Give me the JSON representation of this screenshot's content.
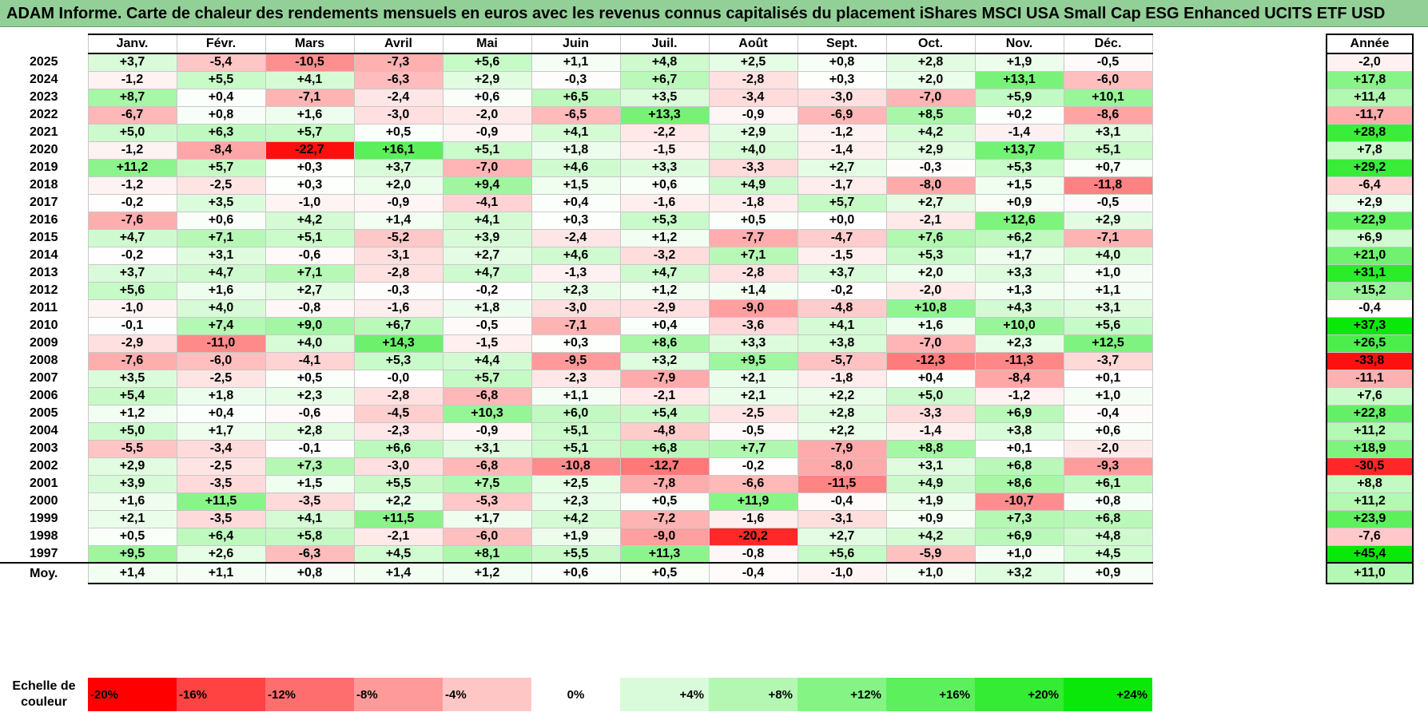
{
  "title": "ADAM Informe. Carte de chaleur des rendements mensuels en euros avec les revenus connus capitalisés du placement iShares MSCI USA Small Cap ESG Enhanced UCITS ETF USD",
  "chart_data": {
    "type": "heatmap",
    "title": "ADAM Informe. Carte de chaleur des rendements mensuels en euros avec les revenus connus capitalisés du placement iShares MSCI USA Small Cap ESG Enhanced UCITS ETF USD",
    "columns": [
      "Janv.",
      "Févr.",
      "Mars",
      "Avril",
      "Mai",
      "Juin",
      "Juil.",
      "Août",
      "Sept.",
      "Oct.",
      "Nov.",
      "Déc."
    ],
    "year_column_label": "Année",
    "rows": [
      {
        "year": "2025",
        "values": [
          "+3,7",
          "-5,4",
          "-10,5",
          "-7,3",
          "+5,6",
          "+1,1",
          "+4,8",
          "+2,5",
          "+0,8",
          "+2,8",
          "+1,9",
          "-0,5"
        ],
        "annual": "-2,0"
      },
      {
        "year": "2024",
        "values": [
          "-1,2",
          "+5,5",
          "+4,1",
          "-6,3",
          "+2,9",
          "-0,3",
          "+6,7",
          "-2,8",
          "+0,3",
          "+2,0",
          "+13,1",
          "-6,0"
        ],
        "annual": "+17,8"
      },
      {
        "year": "2023",
        "values": [
          "+8,7",
          "+0,4",
          "-7,1",
          "-2,4",
          "+0,6",
          "+6,5",
          "+3,5",
          "-3,4",
          "-3,0",
          "-7,0",
          "+5,9",
          "+10,1"
        ],
        "annual": "+11,4"
      },
      {
        "year": "2022",
        "values": [
          "-6,7",
          "+0,8",
          "+1,6",
          "-3,0",
          "-2,0",
          "-6,5",
          "+13,3",
          "-0,9",
          "-6,9",
          "+8,5",
          "+0,2",
          "-8,6"
        ],
        "annual": "-11,7"
      },
      {
        "year": "2021",
        "values": [
          "+5,0",
          "+6,3",
          "+5,7",
          "+0,5",
          "-0,9",
          "+4,1",
          "-2,2",
          "+2,9",
          "-1,2",
          "+4,2",
          "-1,4",
          "+3,1"
        ],
        "annual": "+28,8"
      },
      {
        "year": "2020",
        "values": [
          "-1,2",
          "-8,4",
          "-22,7",
          "+16,1",
          "+5,1",
          "+1,8",
          "-1,5",
          "+4,0",
          "-1,4",
          "+2,9",
          "+13,7",
          "+5,1"
        ],
        "annual": "+7,8"
      },
      {
        "year": "2019",
        "values": [
          "+11,2",
          "+5,7",
          "+0,3",
          "+3,7",
          "-7,0",
          "+4,6",
          "+3,3",
          "-3,3",
          "+2,7",
          "-0,3",
          "+5,3",
          "+0,7"
        ],
        "annual": "+29,2"
      },
      {
        "year": "2018",
        "values": [
          "-1,2",
          "-2,5",
          "+0,3",
          "+2,0",
          "+9,4",
          "+1,5",
          "+0,6",
          "+4,9",
          "-1,7",
          "-8,0",
          "+1,5",
          "-11,8"
        ],
        "annual": "-6,4"
      },
      {
        "year": "2017",
        "values": [
          "-0,2",
          "+3,5",
          "-1,0",
          "-0,9",
          "-4,1",
          "+0,4",
          "-1,6",
          "-1,8",
          "+5,7",
          "+2,7",
          "+0,9",
          "-0,5"
        ],
        "annual": "+2,9"
      },
      {
        "year": "2016",
        "values": [
          "-7,6",
          "+0,6",
          "+4,2",
          "+1,4",
          "+4,1",
          "+0,3",
          "+5,3",
          "+0,5",
          "+0,0",
          "-2,1",
          "+12,6",
          "+2,9"
        ],
        "annual": "+22,9"
      },
      {
        "year": "2015",
        "values": [
          "+4,7",
          "+7,1",
          "+5,1",
          "-5,2",
          "+3,9",
          "-2,4",
          "+1,2",
          "-7,7",
          "-4,7",
          "+7,6",
          "+6,2",
          "-7,1"
        ],
        "annual": "+6,9"
      },
      {
        "year": "2014",
        "values": [
          "-0,2",
          "+3,1",
          "-0,6",
          "-3,1",
          "+2,7",
          "+4,6",
          "-3,2",
          "+7,1",
          "-1,5",
          "+5,3",
          "+1,7",
          "+4,0"
        ],
        "annual": "+21,0"
      },
      {
        "year": "2013",
        "values": [
          "+3,7",
          "+4,7",
          "+7,1",
          "-2,8",
          "+4,7",
          "-1,3",
          "+4,7",
          "-2,8",
          "+3,7",
          "+2,0",
          "+3,3",
          "+1,0"
        ],
        "annual": "+31,1"
      },
      {
        "year": "2012",
        "values": [
          "+5,6",
          "+1,6",
          "+2,7",
          "-0,3",
          "-0,2",
          "+2,3",
          "+1,2",
          "+1,4",
          "-0,2",
          "-2,0",
          "+1,3",
          "+1,1"
        ],
        "annual": "+15,2"
      },
      {
        "year": "2011",
        "values": [
          "-1,0",
          "+4,0",
          "-0,8",
          "-1,6",
          "+1,8",
          "-3,0",
          "-2,9",
          "-9,0",
          "-4,8",
          "+10,8",
          "+4,3",
          "+3,1"
        ],
        "annual": "-0,4"
      },
      {
        "year": "2010",
        "values": [
          "-0,1",
          "+7,4",
          "+9,0",
          "+6,7",
          "-0,5",
          "-7,1",
          "+0,4",
          "-3,6",
          "+4,1",
          "+1,6",
          "+10,0",
          "+5,6"
        ],
        "annual": "+37,3"
      },
      {
        "year": "2009",
        "values": [
          "-2,9",
          "-11,0",
          "+4,0",
          "+14,3",
          "-1,5",
          "+0,3",
          "+8,6",
          "+3,3",
          "+3,8",
          "-7,0",
          "+2,3",
          "+12,5"
        ],
        "annual": "+26,5"
      },
      {
        "year": "2008",
        "values": [
          "-7,6",
          "-6,0",
          "-4,1",
          "+5,3",
          "+4,4",
          "-9,5",
          "+3,2",
          "+9,5",
          "-5,7",
          "-12,3",
          "-11,3",
          "-3,7"
        ],
        "annual": "-33,8"
      },
      {
        "year": "2007",
        "values": [
          "+3,5",
          "-2,5",
          "+0,5",
          "-0,0",
          "+5,7",
          "-2,3",
          "-7,9",
          "+2,1",
          "-1,8",
          "+0,4",
          "-8,4",
          "+0,1"
        ],
        "annual": "-11,1"
      },
      {
        "year": "2006",
        "values": [
          "+5,4",
          "+1,8",
          "+2,3",
          "-2,8",
          "-6,8",
          "+1,1",
          "-2,1",
          "+2,1",
          "+2,2",
          "+5,0",
          "-1,2",
          "+1,0"
        ],
        "annual": "+7,6"
      },
      {
        "year": "2005",
        "values": [
          "+1,2",
          "+0,4",
          "-0,6",
          "-4,5",
          "+10,3",
          "+6,0",
          "+5,4",
          "-2,5",
          "+2,8",
          "-3,3",
          "+6,9",
          "-0,4"
        ],
        "annual": "+22,8"
      },
      {
        "year": "2004",
        "values": [
          "+5,0",
          "+1,7",
          "+2,8",
          "-2,3",
          "-0,9",
          "+5,1",
          "-4,8",
          "-0,5",
          "+2,2",
          "-1,4",
          "+3,8",
          "+0,6"
        ],
        "annual": "+11,2"
      },
      {
        "year": "2003",
        "values": [
          "-5,5",
          "-3,4",
          "-0,1",
          "+6,6",
          "+3,1",
          "+5,1",
          "+6,8",
          "+7,7",
          "-7,9",
          "+8,8",
          "+0,1",
          "-2,0"
        ],
        "annual": "+18,9"
      },
      {
        "year": "2002",
        "values": [
          "+2,9",
          "-2,5",
          "+7,3",
          "-3,0",
          "-6,8",
          "-10,8",
          "-12,7",
          "-0,2",
          "-8,0",
          "+3,1",
          "+6,8",
          "-9,3"
        ],
        "annual": "-30,5"
      },
      {
        "year": "2001",
        "values": [
          "+3,9",
          "-3,5",
          "+1,5",
          "+5,5",
          "+7,5",
          "+2,5",
          "-7,8",
          "-6,6",
          "-11,5",
          "+4,9",
          "+8,6",
          "+6,1"
        ],
        "annual": "+8,8"
      },
      {
        "year": "2000",
        "values": [
          "+1,6",
          "+11,5",
          "-3,5",
          "+2,2",
          "-5,3",
          "+2,3",
          "+0,5",
          "+11,9",
          "-0,4",
          "+1,9",
          "-10,7",
          "+0,8"
        ],
        "annual": "+11,2"
      },
      {
        "year": "1999",
        "values": [
          "+2,1",
          "-3,5",
          "+4,1",
          "+11,5",
          "+1,7",
          "+4,2",
          "-7,2",
          "-1,6",
          "-3,1",
          "+0,9",
          "+7,3",
          "+6,8"
        ],
        "annual": "+23,9"
      },
      {
        "year": "1998",
        "values": [
          "+0,5",
          "+6,4",
          "+5,8",
          "-2,1",
          "-6,0",
          "+1,9",
          "-9,0",
          "-20,2",
          "+2,7",
          "+4,2",
          "+6,9",
          "+4,8"
        ],
        "annual": "-7,6"
      },
      {
        "year": "1997",
        "values": [
          "+9,5",
          "+2,6",
          "-6,3",
          "+4,5",
          "+8,1",
          "+5,5",
          "+11,3",
          "-0,8",
          "+5,6",
          "-5,9",
          "+1,0",
          "+4,5"
        ],
        "annual": "+45,4"
      }
    ],
    "average": {
      "label": "Moy.",
      "values": [
        "+1,4",
        "+1,1",
        "+0,8",
        "+1,4",
        "+1,2",
        "+0,6",
        "+0,5",
        "-0,4",
        "-1,0",
        "+1,0",
        "+3,2",
        "+0,9"
      ],
      "annual": "+11,0"
    },
    "scale": {
      "label": "Echelle de couleur",
      "ticks": [
        "-20%",
        "-16%",
        "-12%",
        "-8%",
        "-4%",
        "0%",
        "+4%",
        "+8%",
        "+12%",
        "+16%",
        "+20%",
        "+24%"
      ],
      "colors": [
        "#ff0000",
        "#ff4242",
        "#ff6e6e",
        "#ff9a9a",
        "#ffc6c6",
        "#ffffff",
        "#d9fbd9",
        "#b3f7b3",
        "#84f484",
        "#5cf05c",
        "#33ec33",
        "#0ae80a"
      ]
    },
    "colors": {
      "negative_max": "#ff0000",
      "neutral": "#ffffff",
      "positive_max": "#0ae80a",
      "header_band": "#92d097"
    }
  }
}
